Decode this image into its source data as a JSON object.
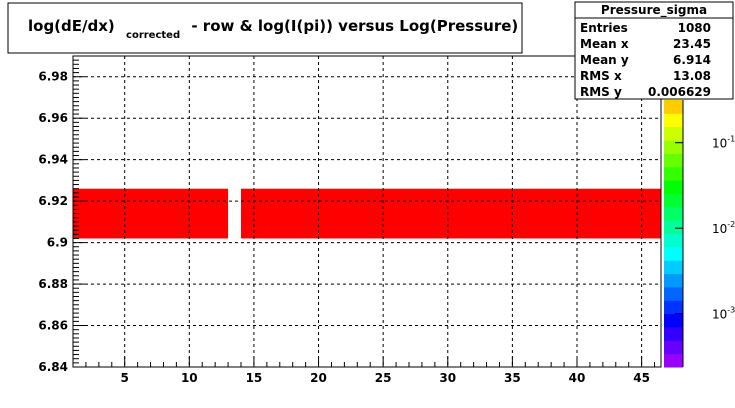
{
  "chart_data": {
    "type": "heatmap",
    "title": {
      "parts": [
        "log(dE/dx)",
        "corrected",
        "- row & log(I(pi)) versus Log(Pressure)"
      ]
    },
    "xlim": [
      1,
      46.5
    ],
    "ylim": [
      6.84,
      6.99
    ],
    "x_ticks": [
      5,
      10,
      15,
      20,
      25,
      30,
      35,
      40,
      45
    ],
    "y_ticks": [
      6.84,
      6.86,
      6.88,
      6.9,
      6.92,
      6.94,
      6.96,
      6.98
    ],
    "y_tick_labels": [
      "6.84",
      "6.86",
      "6.88",
      "6.9",
      "6.92",
      "6.94",
      "6.96",
      "6.98"
    ],
    "grid": true,
    "cells": [
      {
        "x_range": [
          1,
          13
        ],
        "y_range": [
          6.902,
          6.926
        ],
        "color": "#ff0000"
      },
      {
        "x_range": [
          14,
          46.5
        ],
        "y_range": [
          6.902,
          6.926
        ],
        "color": "#ff0000"
      }
    ],
    "stats": {
      "name": "Pressure_sigma",
      "rows": [
        {
          "label": "Entries",
          "value": "1080"
        },
        {
          "label": "Mean x",
          "value": "23.45"
        },
        {
          "label": "Mean y",
          "value": "6.914"
        },
        {
          "label": "RMS x",
          "value": "13.08"
        },
        {
          "label": "RMS y",
          "value": "0.006629"
        }
      ]
    },
    "palette": {
      "colors": [
        "#9900ff",
        "#6600ff",
        "#3300ff",
        "#0000ff",
        "#0033ff",
        "#0066ff",
        "#0099ff",
        "#00ccff",
        "#00ffff",
        "#00ffcc",
        "#00ff99",
        "#00ff66",
        "#00ff33",
        "#00ff00",
        "#33ff00",
        "#66ff00",
        "#99ff00",
        "#ccff00",
        "#ffff00",
        "#ffcc00"
      ],
      "labels": [
        {
          "base": "10",
          "exponent": "-1",
          "level": 0.84
        },
        {
          "base": "10",
          "exponent": "-2",
          "level": 0.52
        },
        {
          "base": "10",
          "exponent": "-3",
          "level": 0.2
        }
      ]
    }
  }
}
